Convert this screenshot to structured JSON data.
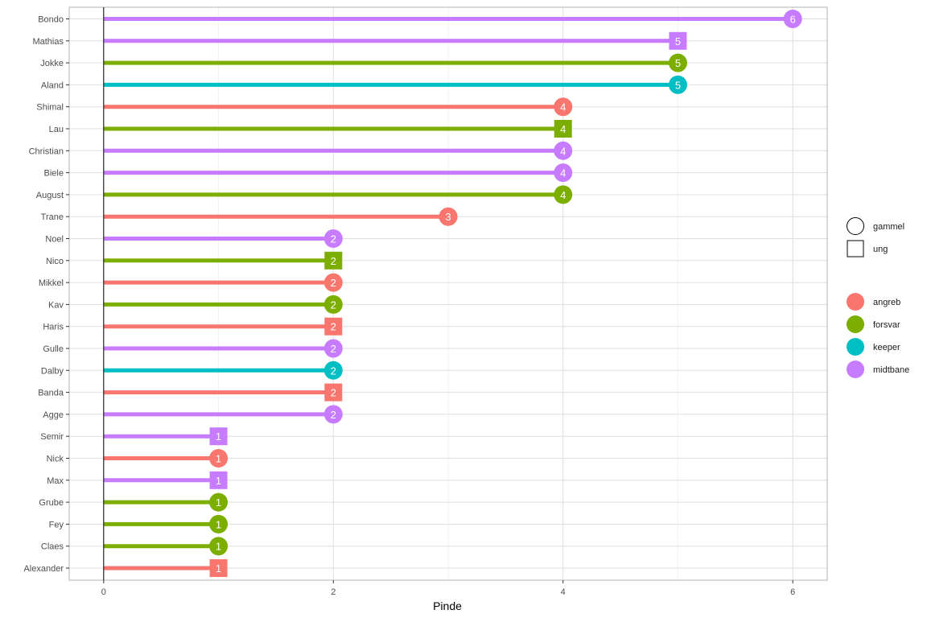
{
  "chart_data": {
    "type": "lollipop",
    "title": "",
    "xlabel": "Pinde",
    "ylabel": "",
    "xlim": [
      -0.3,
      6.3
    ],
    "x_ticks": [
      0,
      2,
      4,
      6
    ],
    "grid": true,
    "legend_position": "right",
    "shape_legend": [
      {
        "label": "gammel",
        "shape": "circle"
      },
      {
        "label": "ung",
        "shape": "square"
      }
    ],
    "color_legend": [
      {
        "label": "angreb",
        "color": "#F8766D"
      },
      {
        "label": "forsvar",
        "color": "#7CAE00"
      },
      {
        "label": "keeper",
        "color": "#00BFC4"
      },
      {
        "label": "midtbane",
        "color": "#C77CFF"
      }
    ],
    "points": [
      {
        "name": "Bondo",
        "value": 6,
        "position": "midtbane",
        "group": "gammel",
        "label": "6"
      },
      {
        "name": "Mathias",
        "value": 5,
        "position": "midtbane",
        "group": "ung",
        "label": "5"
      },
      {
        "name": "Jokke",
        "value": 5,
        "position": "forsvar",
        "group": "gammel",
        "label": "5"
      },
      {
        "name": "Aland",
        "value": 5,
        "position": "keeper",
        "group": "gammel",
        "label": "5"
      },
      {
        "name": "Shimal",
        "value": 4,
        "position": "angreb",
        "group": "gammel",
        "label": "4"
      },
      {
        "name": "Lau",
        "value": 4,
        "position": "forsvar",
        "group": "ung",
        "label": "4"
      },
      {
        "name": "Christian",
        "value": 4,
        "position": "midtbane",
        "group": "gammel",
        "label": "4"
      },
      {
        "name": "Biele",
        "value": 4,
        "position": "midtbane",
        "group": "gammel",
        "label": "4"
      },
      {
        "name": "August",
        "value": 4,
        "position": "forsvar",
        "group": "gammel",
        "label": "4"
      },
      {
        "name": "Trane",
        "value": 3,
        "position": "angreb",
        "group": "gammel",
        "label": "3"
      },
      {
        "name": "Noel",
        "value": 2,
        "position": "midtbane",
        "group": "gammel",
        "label": "2"
      },
      {
        "name": "Nico",
        "value": 2,
        "position": "forsvar",
        "group": "ung",
        "label": "2"
      },
      {
        "name": "Mikkel",
        "value": 2,
        "position": "angreb",
        "group": "gammel",
        "label": "2"
      },
      {
        "name": "Kav",
        "value": 2,
        "position": "forsvar",
        "group": "gammel",
        "label": "2"
      },
      {
        "name": "Haris",
        "value": 2,
        "position": "angreb",
        "group": "ung",
        "label": "2"
      },
      {
        "name": "Gulle",
        "value": 2,
        "position": "midtbane",
        "group": "gammel",
        "label": "2"
      },
      {
        "name": "Dalby",
        "value": 2,
        "position": "keeper",
        "group": "gammel",
        "label": "2"
      },
      {
        "name": "Banda",
        "value": 2,
        "position": "angreb",
        "group": "ung",
        "label": "2"
      },
      {
        "name": "Agge",
        "value": 2,
        "position": "midtbane",
        "group": "gammel",
        "label": "2"
      },
      {
        "name": "Semir",
        "value": 1,
        "position": "midtbane",
        "group": "ung",
        "label": "1"
      },
      {
        "name": "Nick",
        "value": 1,
        "position": "angreb",
        "group": "gammel",
        "label": "1"
      },
      {
        "name": "Max",
        "value": 1,
        "position": "midtbane",
        "group": "ung",
        "label": "1"
      },
      {
        "name": "Grube",
        "value": 1,
        "position": "forsvar",
        "group": "gammel",
        "label": "1"
      },
      {
        "name": "Fey",
        "value": 1,
        "position": "forsvar",
        "group": "gammel",
        "label": "1"
      },
      {
        "name": "Claes",
        "value": 1,
        "position": "forsvar",
        "group": "gammel",
        "label": "1"
      },
      {
        "name": "Alexander",
        "value": 1,
        "position": "angreb",
        "group": "ung",
        "label": "1"
      }
    ]
  }
}
